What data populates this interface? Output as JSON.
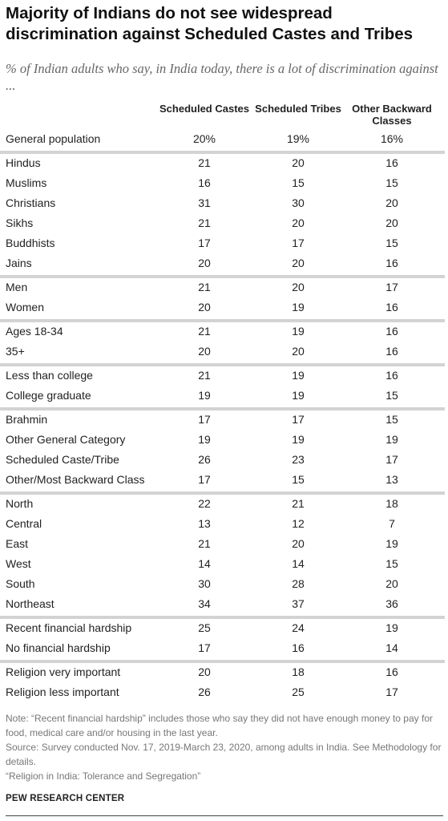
{
  "title": "Majority of Indians do not see widespread discrimination against Scheduled Castes and Tribes",
  "subtitle": "% of Indian adults who say, in India today, there is a lot of discrimination against ...",
  "notes": [
    "Note: “Recent financial hardship” includes those who say they did not have enough money to pay for food, medical care and/or housing in the last year.",
    "Source: Survey conducted Nov. 17, 2019-March 23, 2020, among adults in India. See Methodology for details.",
    "“Religion in India: Tolerance and Segregation”"
  ],
  "footer": "PEW RESEARCH CENTER",
  "chart_data": {
    "type": "table",
    "columns": [
      "Scheduled Castes",
      "Scheduled Tribes",
      "Other Backward Classes"
    ],
    "groups": [
      [
        {
          "label": "General population",
          "values": [
            "20%",
            "19%",
            "16%"
          ]
        }
      ],
      [
        {
          "label": "Hindus",
          "values": [
            "21",
            "20",
            "16"
          ]
        },
        {
          "label": "Muslims",
          "values": [
            "16",
            "15",
            "15"
          ]
        },
        {
          "label": "Christians",
          "values": [
            "31",
            "30",
            "20"
          ]
        },
        {
          "label": "Sikhs",
          "values": [
            "21",
            "20",
            "20"
          ]
        },
        {
          "label": "Buddhists",
          "values": [
            "17",
            "17",
            "15"
          ]
        },
        {
          "label": "Jains",
          "values": [
            "20",
            "20",
            "16"
          ]
        }
      ],
      [
        {
          "label": "Men",
          "values": [
            "21",
            "20",
            "17"
          ]
        },
        {
          "label": "Women",
          "values": [
            "20",
            "19",
            "16"
          ]
        }
      ],
      [
        {
          "label": "Ages 18-34",
          "values": [
            "21",
            "19",
            "16"
          ]
        },
        {
          "label": "35+",
          "values": [
            "20",
            "20",
            "16"
          ]
        }
      ],
      [
        {
          "label": "Less than college",
          "values": [
            "21",
            "19",
            "16"
          ]
        },
        {
          "label": "College graduate",
          "values": [
            "19",
            "19",
            "15"
          ]
        }
      ],
      [
        {
          "label": "Brahmin",
          "values": [
            "17",
            "17",
            "15"
          ]
        },
        {
          "label": "Other General Category",
          "values": [
            "19",
            "19",
            "19"
          ]
        },
        {
          "label": "Scheduled Caste/Tribe",
          "values": [
            "26",
            "23",
            "17"
          ]
        },
        {
          "label": "Other/Most Backward Class",
          "values": [
            "17",
            "15",
            "13"
          ]
        }
      ],
      [
        {
          "label": "North",
          "values": [
            "22",
            "21",
            "18"
          ]
        },
        {
          "label": "Central",
          "values": [
            "13",
            "12",
            "7"
          ]
        },
        {
          "label": "East",
          "values": [
            "21",
            "20",
            "19"
          ]
        },
        {
          "label": "West",
          "values": [
            "14",
            "14",
            "15"
          ]
        },
        {
          "label": "South",
          "values": [
            "30",
            "28",
            "20"
          ]
        },
        {
          "label": "Northeast",
          "values": [
            "34",
            "37",
            "36"
          ]
        }
      ],
      [
        {
          "label": "Recent financial hardship",
          "values": [
            "25",
            "24",
            "19"
          ]
        },
        {
          "label": "No financial hardship",
          "values": [
            "17",
            "16",
            "14"
          ]
        }
      ],
      [
        {
          "label": "Religion very important",
          "values": [
            "20",
            "18",
            "16"
          ]
        },
        {
          "label": "Religion less important",
          "values": [
            "26",
            "25",
            "17"
          ]
        }
      ]
    ]
  }
}
